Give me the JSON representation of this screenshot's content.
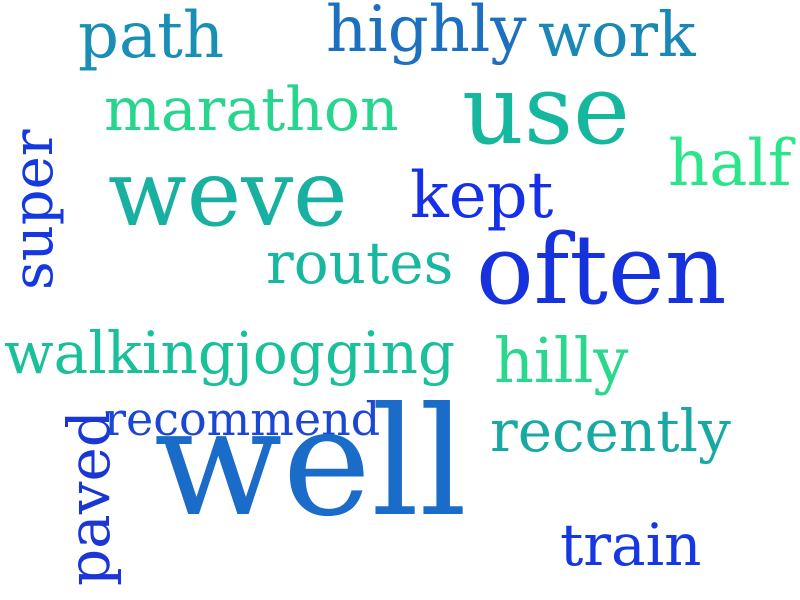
{
  "wordcloud": {
    "words": [
      {
        "id": "path",
        "text": "path",
        "color": "#1a8fb5"
      },
      {
        "id": "highly",
        "text": "highly",
        "color": "#1d6fbf"
      },
      {
        "id": "work",
        "text": "work",
        "color": "#1a88b5"
      },
      {
        "id": "marathon",
        "text": "marathon",
        "color": "#27d58f"
      },
      {
        "id": "use",
        "text": "use",
        "color": "#15b79f"
      },
      {
        "id": "super",
        "text": "super",
        "color": "#1539e0"
      },
      {
        "id": "weve",
        "text": "weve",
        "color": "#18b0a0"
      },
      {
        "id": "half",
        "text": "half",
        "color": "#2be58a"
      },
      {
        "id": "kept",
        "text": "kept",
        "color": "#1530e8"
      },
      {
        "id": "routes",
        "text": "routes",
        "color": "#18b79f"
      },
      {
        "id": "often",
        "text": "often",
        "color": "#1632dc"
      },
      {
        "id": "walkingjogging",
        "text": "walkingjogging",
        "color": "#19c09a"
      },
      {
        "id": "hilly",
        "text": "hilly",
        "color": "#29d88c"
      },
      {
        "id": "paved",
        "text": "paved",
        "color": "#1a37d6"
      },
      {
        "id": "recommend",
        "text": "recommend",
        "color": "#1c46d4"
      },
      {
        "id": "well",
        "text": "well",
        "color": "#1a6cc8"
      },
      {
        "id": "recently",
        "text": "recently",
        "color": "#19a9a5"
      },
      {
        "id": "train",
        "text": "train",
        "color": "#1637e4"
      }
    ]
  }
}
